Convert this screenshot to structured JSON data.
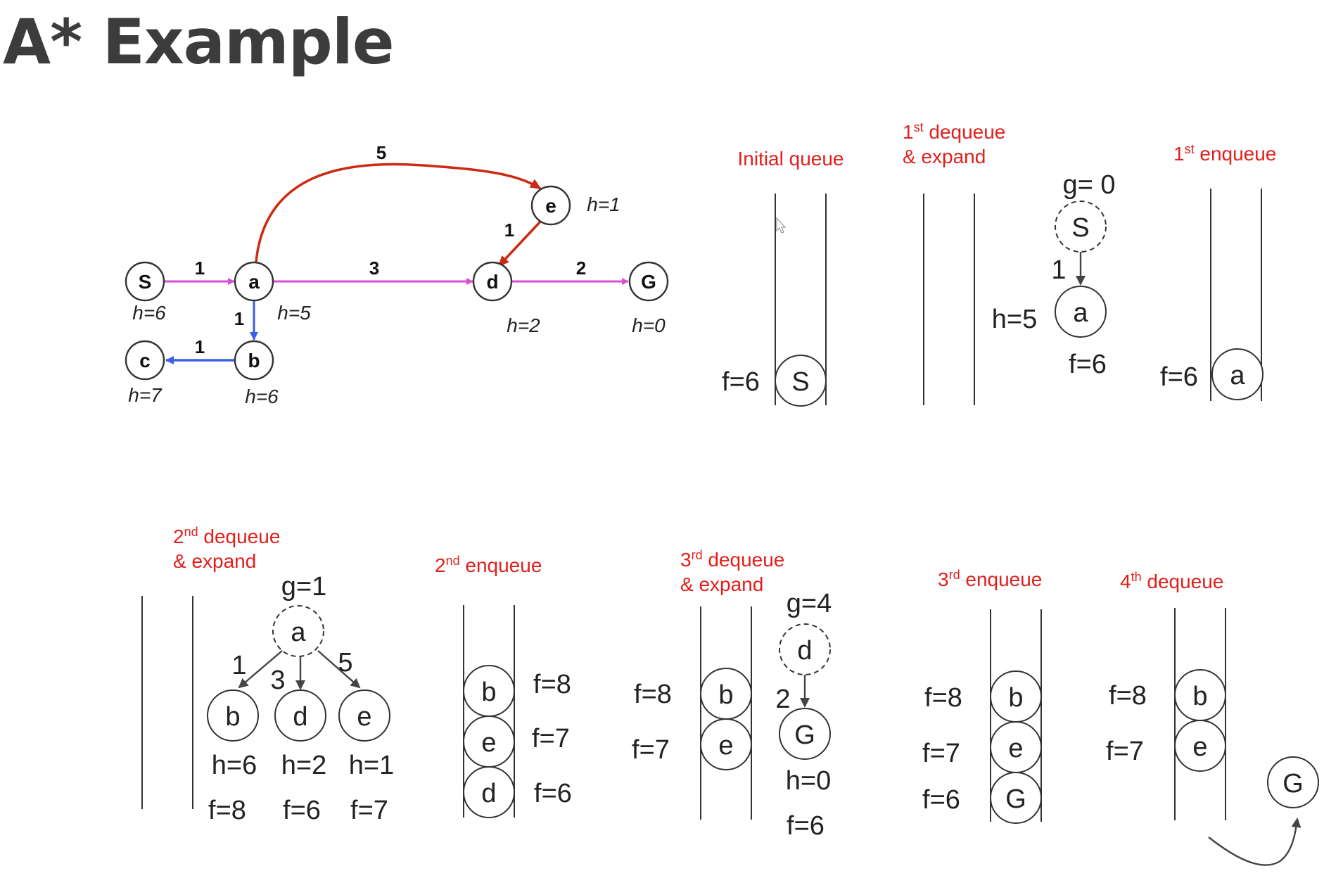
{
  "title": "A* Example",
  "graph": {
    "nodes": [
      {
        "id": "S",
        "label": "S",
        "h": "h=6"
      },
      {
        "id": "a",
        "label": "a",
        "h": "h=5"
      },
      {
        "id": "b",
        "label": "b",
        "h": "h=6"
      },
      {
        "id": "c",
        "label": "c",
        "h": "h=7"
      },
      {
        "id": "d",
        "label": "d",
        "h": "h=2"
      },
      {
        "id": "e",
        "label": "e",
        "h": "h=1"
      },
      {
        "id": "G",
        "label": "G",
        "h": "h=0"
      }
    ],
    "edges": [
      {
        "from": "S",
        "to": "a",
        "weight": "1",
        "color": "#d94ed4"
      },
      {
        "from": "a",
        "to": "d",
        "weight": "3",
        "color": "#d94ed4"
      },
      {
        "from": "d",
        "to": "G",
        "weight": "2",
        "color": "#d94ed4"
      },
      {
        "from": "a",
        "to": "b",
        "weight": "1",
        "color": "#3b5ee8"
      },
      {
        "from": "b",
        "to": "c",
        "weight": "1",
        "color": "#3b5ee8"
      },
      {
        "from": "a",
        "to": "e",
        "weight": "5",
        "color": "#cc2a12"
      },
      {
        "from": "e",
        "to": "d",
        "weight": "1",
        "color": "#cc2a12"
      }
    ]
  },
  "captions": {
    "initial": "Initial queue",
    "d1_main": "1",
    "d1_sup": "st",
    "d1_rest": " dequeue",
    "d1_line2": "& expand",
    "e1_main": "1",
    "e1_sup": "st",
    "e1_rest": " enqueue",
    "d2_main": "2",
    "d2_sup": "nd",
    "d2_rest": " dequeue",
    "d2_line2": "& expand",
    "e2_main": "2",
    "e2_sup": "nd",
    "e2_rest": " enqueue",
    "d3_main": "3",
    "d3_sup": "rd",
    "d3_rest": " dequeue",
    "d3_line2": "& expand",
    "e3_main": "3",
    "e3_sup": "rd",
    "e3_rest": " enqueue",
    "d4_main": "4",
    "d4_sup": "th",
    "d4_rest": " dequeue"
  },
  "panels": {
    "initial": {
      "f": "f=6",
      "node": "S"
    },
    "deq1": {
      "g": "g= 0",
      "from": "S",
      "edge": "1",
      "h": "h=5",
      "to": "a",
      "f": "f=6"
    },
    "enq1": {
      "f": "f=6",
      "node": "a"
    },
    "deq2": {
      "g": "g=1",
      "from": "a",
      "children": [
        {
          "node": "b",
          "edge": "1",
          "h": "h=6",
          "f": "f=8"
        },
        {
          "node": "d",
          "edge": "3",
          "h": "h=2",
          "f": "f=6"
        },
        {
          "node": "e",
          "edge": "5",
          "h": "h=1",
          "f": "f=7"
        }
      ]
    },
    "enq2": {
      "items": [
        {
          "node": "b",
          "f": "f=8"
        },
        {
          "node": "e",
          "f": "f=7"
        },
        {
          "node": "d",
          "f": "f=6"
        }
      ]
    },
    "deq3": {
      "items": [
        {
          "node": "b",
          "f": "f=8"
        },
        {
          "node": "e",
          "f": "f=7"
        }
      ],
      "g": "g=4",
      "from": "d",
      "edge": "2",
      "to": "G",
      "h": "h=0",
      "f": "f=6"
    },
    "enq3": {
      "items": [
        {
          "node": "b",
          "f": "f=8"
        },
        {
          "node": "e",
          "f": "f=7"
        },
        {
          "node": "G",
          "f": "f=6"
        }
      ]
    },
    "deq4": {
      "items": [
        {
          "node": "b",
          "f": "f=8"
        },
        {
          "node": "e",
          "f": "f=7"
        }
      ],
      "out": "G"
    }
  }
}
